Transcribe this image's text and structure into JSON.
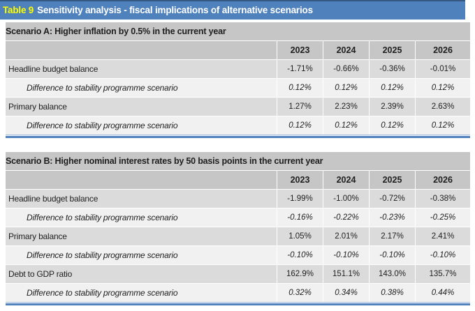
{
  "title_bar": {
    "number": "Table 9",
    "title": "Sensitivity analysis - fiscal implications of alternative scenarios"
  },
  "years": [
    "2023",
    "2024",
    "2025",
    "2026"
  ],
  "tables": [
    {
      "title": "Scenario A: Higher inflation by 0.5% in the current year",
      "rows": [
        {
          "type": "main",
          "label": "Headline budget balance",
          "values": [
            "-1.71%",
            "-0.66%",
            "-0.36%",
            "-0.01%"
          ]
        },
        {
          "type": "diff",
          "label": "Difference to stability programme scenario",
          "values": [
            "0.12%",
            "0.12%",
            "0.12%",
            "0.12%"
          ]
        },
        {
          "type": "main",
          "label": "Primary balance",
          "values": [
            "1.27%",
            "2.23%",
            "2.39%",
            "2.63%"
          ]
        },
        {
          "type": "diff",
          "label": "Difference to stability programme scenario",
          "values": [
            "0.12%",
            "0.12%",
            "0.12%",
            "0.12%"
          ]
        }
      ]
    },
    {
      "title": "Scenario B: Higher nominal interest rates by 50 basis points in the current year",
      "rows": [
        {
          "type": "main",
          "label": "Headline budget balance",
          "values": [
            "-1.99%",
            "-1.00%",
            "-0.72%",
            "-0.38%"
          ]
        },
        {
          "type": "diff",
          "label": "Difference to stability programme scenario",
          "values": [
            "-0.16%",
            "-0.22%",
            "-0.23%",
            "-0.25%"
          ]
        },
        {
          "type": "main",
          "label": "Primary balance",
          "values": [
            "1.05%",
            "2.01%",
            "2.17%",
            "2.41%"
          ]
        },
        {
          "type": "diff",
          "label": "Difference to stability programme scenario",
          "values": [
            "-0.10%",
            "-0.10%",
            "-0.10%",
            "-0.10%"
          ]
        },
        {
          "type": "main",
          "label": "Debt to GDP ratio",
          "values": [
            "162.9%",
            "151.1%",
            "143.0%",
            "135.7%"
          ]
        },
        {
          "type": "diff",
          "label": "Difference to stability programme scenario",
          "values": [
            "0.32%",
            "0.34%",
            "0.38%",
            "0.44%"
          ]
        }
      ]
    }
  ],
  "colors": {
    "title_bar_bg": "#4f81bd",
    "title_bar_top_border": "#36577f",
    "title_number_yellow": "#fdfd00",
    "header_gray": "#c6c6c6",
    "main_row_gray": "#dbdbdb",
    "diff_row_light": "#f1f1f1",
    "bottom_border_blue": "#4f81bd",
    "text": "#1f1f1f"
  }
}
